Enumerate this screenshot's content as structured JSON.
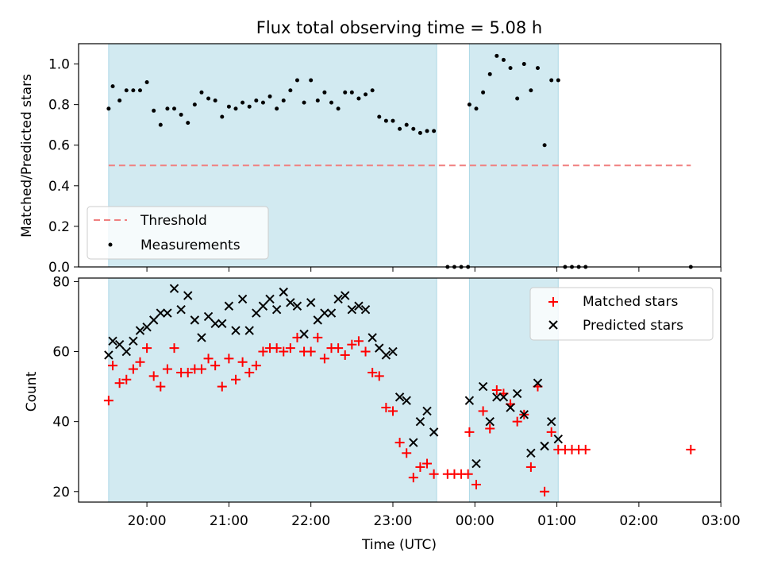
{
  "chart_data": [
    {
      "type": "scatter",
      "title": "Flux total observing time = 5.08 h",
      "xlabel": "",
      "ylabel": "Matched/Predicted stars",
      "ylim": [
        0,
        1.1
      ],
      "yticks": [
        "0.0",
        "0.2",
        "0.4",
        "0.6",
        "0.8",
        "1.0"
      ],
      "grid": false,
      "legend_position": "lower-left",
      "shaded_intervals": [
        [
          "19:32",
          "23:32"
        ],
        [
          "23:56",
          "01:01"
        ]
      ],
      "shade_color": "#add8e6",
      "threshold": {
        "name": "Threshold",
        "value": 0.5,
        "x_start": "19:32",
        "x_end": "02:38",
        "color": "#f08080",
        "style": "dashed"
      },
      "series": [
        {
          "name": "Measurements",
          "color": "#000000",
          "marker": "dot",
          "x": [
            "19:32",
            "19:35",
            "19:40",
            "19:45",
            "19:50",
            "19:55",
            "20:00",
            "20:05",
            "20:10",
            "20:15",
            "20:20",
            "20:25",
            "20:30",
            "20:35",
            "20:40",
            "20:45",
            "20:50",
            "20:55",
            "21:00",
            "21:05",
            "21:10",
            "21:15",
            "21:20",
            "21:25",
            "21:30",
            "21:35",
            "21:40",
            "21:45",
            "21:50",
            "21:55",
            "22:00",
            "22:05",
            "22:10",
            "22:15",
            "22:20",
            "22:25",
            "22:30",
            "22:35",
            "22:40",
            "22:45",
            "22:50",
            "22:55",
            "23:00",
            "23:05",
            "23:10",
            "23:15",
            "23:20",
            "23:25",
            "23:30",
            "23:40",
            "23:45",
            "23:50",
            "23:55",
            "23:56",
            "00:01",
            "00:06",
            "00:11",
            "00:16",
            "00:21",
            "00:26",
            "00:31",
            "00:36",
            "00:41",
            "00:46",
            "00:51",
            "00:56",
            "01:01",
            "01:06",
            "01:11",
            "01:16",
            "01:21",
            "02:38"
          ],
          "y": [
            0.78,
            0.89,
            0.82,
            0.87,
            0.87,
            0.87,
            0.91,
            0.77,
            0.7,
            0.78,
            0.78,
            0.75,
            0.71,
            0.8,
            0.86,
            0.83,
            0.82,
            0.74,
            0.79,
            0.78,
            0.81,
            0.79,
            0.82,
            0.81,
            0.84,
            0.78,
            0.82,
            0.87,
            0.92,
            0.81,
            0.92,
            0.82,
            0.86,
            0.81,
            0.78,
            0.86,
            0.86,
            0.83,
            0.85,
            0.87,
            0.74,
            0.72,
            0.72,
            0.68,
            0.7,
            0.68,
            0.66,
            0.67,
            0.67,
            0.0,
            0.0,
            0.0,
            0.0,
            0.8,
            0.78,
            0.86,
            0.95,
            1.04,
            1.02,
            0.98,
            0.83,
            1.0,
            0.87,
            0.98,
            0.6,
            0.92,
            0.92,
            0.0,
            0.0,
            0.0,
            0.0,
            0.0
          ]
        }
      ]
    },
    {
      "type": "scatter",
      "xlabel": "Time (UTC)",
      "ylabel": "Count",
      "ylim": [
        17,
        81
      ],
      "yticks": [
        "20",
        "40",
        "60",
        "80"
      ],
      "xticks": [
        "20:00",
        "21:00",
        "22:00",
        "23:00",
        "00:00",
        "01:00",
        "02:00",
        "03:00"
      ],
      "grid": false,
      "legend_position": "upper-right",
      "series": [
        {
          "name": "Matched stars",
          "color": "#ff0000",
          "marker": "plus",
          "x": [
            "19:32",
            "19:35",
            "19:40",
            "19:45",
            "19:50",
            "19:55",
            "20:00",
            "20:05",
            "20:10",
            "20:15",
            "20:20",
            "20:25",
            "20:30",
            "20:35",
            "20:40",
            "20:45",
            "20:50",
            "20:55",
            "21:00",
            "21:05",
            "21:10",
            "21:15",
            "21:20",
            "21:25",
            "21:30",
            "21:35",
            "21:40",
            "21:45",
            "21:50",
            "21:55",
            "22:00",
            "22:05",
            "22:10",
            "22:15",
            "22:20",
            "22:25",
            "22:30",
            "22:35",
            "22:40",
            "22:45",
            "22:50",
            "22:55",
            "23:00",
            "23:05",
            "23:10",
            "23:15",
            "23:20",
            "23:25",
            "23:30",
            "23:40",
            "23:45",
            "23:50",
            "23:55",
            "23:56",
            "00:01",
            "00:06",
            "00:11",
            "00:16",
            "00:21",
            "00:26",
            "00:31",
            "00:36",
            "00:41",
            "00:46",
            "00:51",
            "00:56",
            "01:01",
            "01:06",
            "01:11",
            "01:16",
            "01:21",
            "02:38"
          ],
          "y": [
            46,
            56,
            51,
            52,
            55,
            57,
            61,
            53,
            50,
            55,
            61,
            54,
            54,
            55,
            55,
            58,
            56,
            50,
            58,
            52,
            57,
            54,
            56,
            60,
            61,
            61,
            60,
            61,
            64,
            60,
            60,
            64,
            58,
            61,
            61,
            59,
            62,
            63,
            60,
            54,
            53,
            44,
            43,
            34,
            31,
            24,
            27,
            28,
            25,
            25,
            25,
            25,
            25,
            37,
            22,
            43,
            38,
            49,
            48,
            45,
            40,
            42,
            27,
            50,
            20,
            37,
            32,
            32,
            32,
            32,
            32,
            32
          ]
        },
        {
          "name": "Predicted stars",
          "color": "#000000",
          "marker": "x",
          "x": [
            "19:32",
            "19:35",
            "19:40",
            "19:45",
            "19:50",
            "19:55",
            "20:00",
            "20:05",
            "20:10",
            "20:15",
            "20:20",
            "20:25",
            "20:30",
            "20:35",
            "20:40",
            "20:45",
            "20:50",
            "20:55",
            "21:00",
            "21:05",
            "21:10",
            "21:15",
            "21:20",
            "21:25",
            "21:30",
            "21:35",
            "21:40",
            "21:45",
            "21:50",
            "21:55",
            "22:00",
            "22:05",
            "22:10",
            "22:15",
            "22:20",
            "22:25",
            "22:30",
            "22:35",
            "22:40",
            "22:45",
            "22:50",
            "22:55",
            "23:00",
            "23:05",
            "23:10",
            "23:15",
            "23:20",
            "23:25",
            "23:30",
            "23:56",
            "00:01",
            "00:06",
            "00:11",
            "00:16",
            "00:21",
            "00:26",
            "00:31",
            "00:36",
            "00:41",
            "00:46",
            "00:51",
            "00:56",
            "01:01"
          ],
          "y": [
            59,
            63,
            62,
            60,
            63,
            66,
            67,
            69,
            71,
            71,
            78,
            72,
            76,
            69,
            64,
            70,
            68,
            68,
            73,
            66,
            75,
            66,
            71,
            73,
            75,
            72,
            77,
            74,
            73,
            65,
            74,
            69,
            71,
            71,
            75,
            76,
            72,
            73,
            72,
            64,
            61,
            59,
            60,
            47,
            46,
            34,
            40,
            43,
            37,
            46,
            28,
            50,
            40,
            47,
            47,
            44,
            48,
            42,
            31,
            51,
            33,
            40,
            35
          ]
        }
      ]
    }
  ]
}
